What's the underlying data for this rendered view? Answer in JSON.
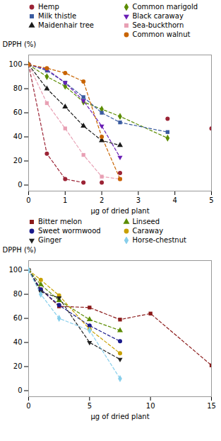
{
  "chart_data": [
    {
      "type": "scatter",
      "xlabel": "μg of dried plant",
      "ylabel": "DPPH (%)",
      "xlim": [
        0,
        5
      ],
      "ylim": [
        -5,
        108
      ],
      "xticks": [
        0,
        1,
        2,
        3,
        4,
        5
      ],
      "yticks": [
        0,
        20,
        40,
        60,
        80,
        100
      ],
      "legend": "upper right",
      "series": [
        {
          "name": "Hemp",
          "color": "#9b2335",
          "marker": "circle",
          "line_style": "dashed",
          "x": [
            0,
            0.5,
            1.0,
            1.5,
            2.0,
            2.5,
            3.8,
            5.0
          ],
          "values": [
            100,
            26,
            5,
            2,
            2,
            10,
            55,
            47
          ],
          "fit_x": [
            0,
            0.5,
            1.0,
            1.5
          ],
          "fit_values": [
            100,
            26,
            5,
            2
          ]
        },
        {
          "name": "Common marigold",
          "color": "#5b8c00",
          "marker": "diamond",
          "line_style": "dashed",
          "x": [
            0,
            0.5,
            1.0,
            1.5,
            2.0,
            2.5,
            3.8
          ],
          "values": [
            100,
            90,
            82,
            69,
            63,
            57,
            39
          ],
          "fit_x": [
            0,
            0.5,
            1.0,
            1.5,
            2.0,
            2.5,
            3.8
          ],
          "fit_values": [
            100,
            90,
            82,
            69,
            63,
            57,
            39
          ]
        },
        {
          "name": "Milk thistle",
          "color": "#3a5ba0",
          "marker": "square",
          "line_style": "dashed",
          "x": [
            0,
            0.5,
            1.0,
            1.5,
            2.0,
            2.5,
            3.8
          ],
          "values": [
            100,
            95,
            85,
            73,
            60,
            52,
            44
          ],
          "fit_x": [
            0,
            0.5,
            1.0,
            1.5,
            2.0,
            2.5,
            3.8
          ],
          "fit_values": [
            100,
            95,
            85,
            73,
            60,
            52,
            44
          ]
        },
        {
          "name": "Black caraway",
          "color": "#6a1fb5",
          "marker": "triangle-down",
          "line_style": "dashed",
          "x": [
            0,
            0.5,
            1.0,
            1.5,
            2.0,
            2.5
          ],
          "values": [
            100,
            96,
            85,
            70,
            49,
            23
          ],
          "fit_x": [
            0,
            0.5,
            1.0,
            1.5,
            2.0,
            2.5
          ],
          "fit_values": [
            100,
            96,
            85,
            70,
            49,
            23
          ]
        },
        {
          "name": "Maidenhair tree",
          "color": "#1a1a1a",
          "marker": "triangle",
          "line_style": "dashed",
          "x": [
            0,
            0.5,
            1.0,
            1.5,
            2.0,
            2.5
          ],
          "values": [
            100,
            80,
            65,
            49,
            37,
            33
          ],
          "fit_x": [
            0,
            0.5,
            1.0,
            1.5,
            2.0,
            2.5
          ],
          "fit_values": [
            100,
            80,
            65,
            49,
            37,
            33
          ]
        },
        {
          "name": "Sea-buckthorn",
          "color": "#e8a0b4",
          "marker": "square",
          "line_style": "dashed",
          "x": [
            0,
            0.5,
            1.0,
            1.5,
            2.0,
            2.5
          ],
          "values": [
            100,
            68,
            47,
            25,
            7,
            5
          ],
          "fit_x": [
            0,
            0.5,
            1.0,
            1.5,
            2.0,
            2.5
          ],
          "fit_values": [
            100,
            68,
            47,
            25,
            7,
            5
          ]
        },
        {
          "name": "Common walnut",
          "color": "#c86400",
          "marker": "circle",
          "line_style": "dashed",
          "x": [
            0,
            0.5,
            1.0,
            1.5,
            2.0,
            2.5
          ],
          "values": [
            100,
            97,
            93,
            86,
            40,
            5
          ],
          "fit_x": [
            0,
            0.5,
            1.0,
            1.5,
            2.0,
            2.5
          ],
          "fit_values": [
            100,
            97,
            93,
            86,
            40,
            5
          ]
        }
      ]
    },
    {
      "type": "scatter",
      "xlabel": "μg of dried plant",
      "ylabel": "DPPH (%)",
      "xlim": [
        0,
        15
      ],
      "ylim": [
        -5,
        108
      ],
      "xticks": [
        0,
        5,
        10,
        15
      ],
      "yticks": [
        0,
        20,
        40,
        60,
        80,
        100
      ],
      "legend": "upper right",
      "series": [
        {
          "name": "Bitter melon",
          "color": "#8B1A1A",
          "marker": "square",
          "line_style": "dashed",
          "x": [
            0,
            1.0,
            2.5,
            5.0,
            7.5,
            10.0,
            15.0
          ],
          "values": [
            100,
            84,
            70,
            69,
            59,
            64,
            21
          ],
          "fit_x": [
            0,
            1.0,
            2.5,
            5.0,
            7.5,
            10.0,
            15.0
          ],
          "fit_values": [
            100,
            84,
            70,
            69,
            59,
            64,
            21
          ]
        },
        {
          "name": "Linseed",
          "color": "#5b8c00",
          "marker": "triangle",
          "line_style": "dashed",
          "x": [
            0,
            1.0,
            2.5,
            5.0,
            7.5
          ],
          "values": [
            100,
            88,
            75,
            59,
            50
          ],
          "fit_x": [
            0,
            1.0,
            2.5,
            5.0,
            7.5
          ],
          "fit_values": [
            100,
            88,
            75,
            59,
            50
          ]
        },
        {
          "name": "Sweet wormwood",
          "color": "#1a1a8c",
          "marker": "circle",
          "line_style": "dashed",
          "x": [
            0,
            1.0,
            2.5,
            5.0,
            7.5
          ],
          "values": [
            100,
            84,
            71,
            54,
            41
          ],
          "fit_x": [
            0,
            1.0,
            2.5,
            5.0,
            7.5
          ],
          "fit_values": [
            100,
            84,
            71,
            54,
            41
          ]
        },
        {
          "name": "Caraway",
          "color": "#c8a000",
          "marker": "circle",
          "line_style": "dashed",
          "x": [
            0,
            1.0,
            2.5,
            5.0,
            7.5
          ],
          "values": [
            100,
            92,
            79,
            51,
            31
          ],
          "fit_x": [
            0,
            1.0,
            2.5,
            5.0,
            7.5
          ],
          "fit_values": [
            100,
            92,
            79,
            51,
            31
          ]
        },
        {
          "name": "Ginger",
          "color": "#222222",
          "marker": "triangle-down",
          "line_style": "dashed",
          "x": [
            0,
            1.0,
            2.5,
            5.0,
            7.5
          ],
          "values": [
            100,
            82,
            77,
            40,
            26
          ],
          "fit_x": [
            0,
            1.0,
            2.5,
            5.0,
            7.5
          ],
          "fit_values": [
            100,
            82,
            77,
            40,
            26
          ]
        },
        {
          "name": "Horse-chestnut",
          "color": "#87CEEB",
          "marker": "diamond",
          "line_style": "dashed",
          "x": [
            0,
            1.0,
            2.5,
            5.0,
            7.5
          ],
          "values": [
            100,
            80,
            60,
            50,
            10
          ],
          "fit_x": [
            0,
            1.0,
            2.5,
            5.0,
            7.5
          ],
          "fit_values": [
            100,
            80,
            60,
            50,
            10
          ]
        }
      ]
    }
  ]
}
